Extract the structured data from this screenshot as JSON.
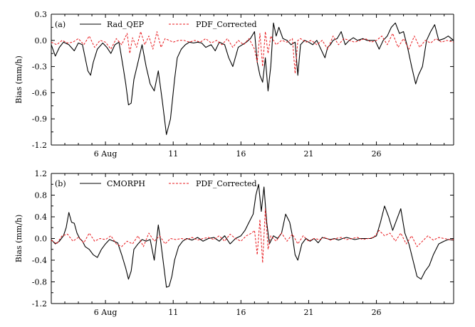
{
  "colors": {
    "series_1": "#000000",
    "series_2": "#e8191d",
    "axes": "#000000"
  },
  "chart_data": [
    {
      "type": "line",
      "panel_label": "(a)",
      "ylabel": "Bias (mm/h)",
      "xlabel": "",
      "xlim": [
        2,
        31.7
      ],
      "ylim": [
        -1.2,
        0.3
      ],
      "yticks": [
        0.3,
        0.0,
        -0.3,
        -0.6,
        -0.9,
        -1.2
      ],
      "ytick_labels": [
        "0.3",
        "0.0",
        "-0.3",
        "-0.6",
        "-0.9",
        "-1.2"
      ],
      "xticks": [
        6,
        11,
        16,
        21,
        26
      ],
      "xtick_labels": [
        "6  Aug",
        "11",
        "16",
        "21",
        "26"
      ],
      "legend": "top-left",
      "series": [
        {
          "name": "Rad_QEP",
          "style": "solid",
          "x": [
            2.0,
            2.3,
            2.6,
            2.9,
            3.3,
            3.7,
            4.0,
            4.3,
            4.5,
            4.7,
            4.9,
            5.1,
            5.4,
            5.8,
            6.1,
            6.4,
            6.7,
            7.0,
            7.3,
            7.5,
            7.7,
            7.9,
            8.1,
            8.4,
            8.7,
            9.0,
            9.3,
            9.6,
            9.9,
            10.2,
            10.5,
            10.8,
            11.1,
            11.3,
            11.6,
            11.9,
            12.2,
            12.5,
            12.8,
            13.1,
            13.4,
            13.8,
            14.1,
            14.4,
            14.8,
            15.1,
            15.4,
            15.8,
            16.1,
            16.4,
            16.7,
            17.0,
            17.2,
            17.4,
            17.6,
            17.8,
            18.0,
            18.2,
            18.4,
            18.6,
            18.8,
            19.1,
            19.4,
            19.7,
            20.0,
            20.2,
            20.4,
            20.7,
            21.0,
            21.3,
            21.6,
            21.9,
            22.2,
            22.4,
            22.6,
            22.8,
            23.1,
            23.4,
            23.7,
            24.0,
            24.3,
            24.6,
            25.0,
            25.3,
            25.6,
            25.9,
            26.2,
            26.5,
            26.8,
            27.1,
            27.4,
            27.7,
            28.0,
            28.3,
            28.6,
            28.9,
            29.1,
            29.4,
            29.7,
            30.0,
            30.3,
            30.6,
            31.0,
            31.3,
            31.7
          ],
          "y": [
            -0.05,
            -0.18,
            -0.08,
            -0.02,
            -0.05,
            -0.12,
            -0.03,
            -0.05,
            -0.2,
            -0.35,
            -0.4,
            -0.25,
            -0.1,
            -0.03,
            -0.08,
            -0.15,
            -0.05,
            -0.02,
            -0.3,
            -0.5,
            -0.74,
            -0.72,
            -0.45,
            -0.25,
            -0.05,
            -0.3,
            -0.5,
            -0.58,
            -0.35,
            -0.7,
            -1.08,
            -0.9,
            -0.45,
            -0.2,
            -0.1,
            -0.05,
            -0.02,
            -0.03,
            -0.02,
            -0.03,
            -0.08,
            -0.05,
            -0.12,
            -0.02,
            -0.05,
            -0.2,
            -0.3,
            -0.08,
            -0.05,
            -0.02,
            0.02,
            0.1,
            -0.25,
            -0.4,
            -0.48,
            -0.2,
            -0.58,
            -0.3,
            0.2,
            0.05,
            0.15,
            0.02,
            0.0,
            -0.05,
            -0.02,
            -0.4,
            -0.05,
            0.0,
            -0.02,
            -0.05,
            0.0,
            -0.1,
            -0.2,
            -0.08,
            -0.05,
            0.0,
            0.02,
            0.1,
            -0.05,
            0.0,
            0.03,
            0.0,
            0.02,
            0.0,
            0.0,
            0.0,
            -0.1,
            0.0,
            0.05,
            0.15,
            0.2,
            0.08,
            0.1,
            -0.08,
            -0.3,
            -0.5,
            -0.4,
            -0.3,
            0.0,
            0.1,
            0.18,
            0.0,
            0.02,
            0.05,
            0.0
          ]
        },
        {
          "name": "PDF_Corrected",
          "style": "dashed",
          "x": [
            2.0,
            2.4,
            2.8,
            3.2,
            3.6,
            4.0,
            4.4,
            4.8,
            5.2,
            5.6,
            6.0,
            6.4,
            6.8,
            7.2,
            7.6,
            7.8,
            8.0,
            8.3,
            8.6,
            8.9,
            9.2,
            9.5,
            9.8,
            10.1,
            10.4,
            10.7,
            11.0,
            11.4,
            11.8,
            12.2,
            12.6,
            13.0,
            13.4,
            13.8,
            14.2,
            14.6,
            15.0,
            15.4,
            15.8,
            16.2,
            16.6,
            17.0,
            17.2,
            17.4,
            17.6,
            17.8,
            18.0,
            18.2,
            18.6,
            19.0,
            19.4,
            19.8,
            20.0,
            20.2,
            20.4,
            20.8,
            21.2,
            21.6,
            22.0,
            22.4,
            22.8,
            23.2,
            23.6,
            24.0,
            24.4,
            24.8,
            25.2,
            25.6,
            26.0,
            26.4,
            26.8,
            27.2,
            27.6,
            28.0,
            28.4,
            28.8,
            29.2,
            29.6,
            30.0,
            30.4,
            30.8,
            31.2,
            31.7
          ],
          "y": [
            -0.02,
            -0.05,
            0.0,
            -0.03,
            -0.02,
            0.02,
            -0.05,
            0.05,
            -0.08,
            0.0,
            -0.02,
            -0.1,
            0.02,
            -0.05,
            0.08,
            -0.15,
            0.03,
            -0.08,
            0.1,
            -0.05,
            0.05,
            -0.1,
            0.1,
            -0.08,
            0.02,
            0.0,
            -0.02,
            0.0,
            0.0,
            -0.02,
            0.0,
            -0.02,
            0.02,
            -0.03,
            0.0,
            -0.05,
            0.02,
            -0.08,
            0.0,
            -0.05,
            0.02,
            -0.1,
            -0.25,
            0.08,
            -0.3,
            0.1,
            -0.15,
            0.05,
            -0.05,
            0.0,
            -0.02,
            0.02,
            -0.38,
            0.0,
            0.02,
            -0.02,
            0.0,
            -0.05,
            0.0,
            -0.1,
            0.05,
            -0.05,
            0.02,
            0.0,
            -0.02,
            0.0,
            0.02,
            -0.02,
            0.0,
            0.05,
            -0.05,
            0.08,
            -0.08,
            0.02,
            -0.1,
            0.05,
            -0.08,
            0.0,
            -0.03,
            0.02,
            -0.02,
            0.0,
            -0.02
          ]
        }
      ]
    },
    {
      "type": "line",
      "panel_label": "(b)",
      "ylabel": "Bias (mm/h)",
      "xlabel": "",
      "xlim": [
        2,
        31.7
      ],
      "ylim": [
        -1.2,
        1.2
      ],
      "yticks": [
        1.2,
        0.8,
        0.4,
        0.0,
        -0.4,
        -0.8,
        -1.2
      ],
      "ytick_labels": [
        "1.2",
        "0.8",
        "0.4",
        "0.0",
        "-0.4",
        "-0.8",
        "-1.2"
      ],
      "xticks": [
        6,
        11,
        16,
        21,
        26
      ],
      "xtick_labels": [
        "6  Aug",
        "11",
        "16",
        "21",
        "26"
      ],
      "legend": "top-left",
      "series": [
        {
          "name": "CMORPH",
          "style": "solid",
          "x": [
            2.0,
            2.3,
            2.6,
            2.9,
            3.1,
            3.3,
            3.5,
            3.7,
            3.9,
            4.1,
            4.3,
            4.5,
            4.8,
            5.1,
            5.4,
            5.7,
            6.0,
            6.3,
            6.6,
            6.9,
            7.2,
            7.5,
            7.7,
            7.9,
            8.1,
            8.4,
            8.7,
            9.0,
            9.3,
            9.6,
            9.9,
            10.1,
            10.3,
            10.5,
            10.7,
            10.9,
            11.1,
            11.4,
            11.7,
            12.0,
            12.4,
            12.8,
            13.2,
            13.6,
            14.0,
            14.4,
            14.8,
            15.2,
            15.6,
            16.0,
            16.3,
            16.6,
            16.9,
            17.1,
            17.3,
            17.5,
            17.7,
            17.9,
            18.1,
            18.4,
            18.7,
            19.0,
            19.3,
            19.6,
            19.8,
            20.0,
            20.2,
            20.5,
            20.8,
            21.1,
            21.4,
            21.7,
            22.0,
            22.3,
            22.6,
            22.9,
            23.2,
            23.5,
            23.8,
            24.1,
            24.4,
            24.8,
            25.2,
            25.6,
            26.0,
            26.3,
            26.6,
            26.9,
            27.2,
            27.5,
            27.8,
            28.1,
            28.4,
            28.7,
            29.0,
            29.3,
            29.6,
            29.9,
            30.2,
            30.6,
            31.0,
            31.3,
            31.7
          ],
          "y": [
            -0.02,
            -0.1,
            -0.05,
            0.05,
            0.2,
            0.48,
            0.3,
            0.28,
            0.1,
            0.0,
            -0.05,
            -0.15,
            -0.2,
            -0.3,
            -0.35,
            -0.2,
            -0.1,
            -0.02,
            -0.05,
            -0.08,
            -0.3,
            -0.55,
            -0.75,
            -0.6,
            -0.2,
            -0.1,
            -0.02,
            -0.05,
            -0.02,
            -0.4,
            0.25,
            -0.1,
            -0.5,
            -0.9,
            -0.88,
            -0.7,
            -0.4,
            -0.15,
            -0.05,
            0.0,
            -0.03,
            0.02,
            -0.05,
            0.0,
            0.02,
            -0.05,
            0.05,
            -0.1,
            0.0,
            0.05,
            0.15,
            0.3,
            0.45,
            0.8,
            1.0,
            0.5,
            0.95,
            0.3,
            -0.1,
            0.05,
            0.0,
            0.1,
            0.45,
            0.3,
            0.05,
            -0.3,
            -0.4,
            -0.1,
            0.0,
            -0.05,
            0.0,
            -0.08,
            0.02,
            0.0,
            -0.02,
            0.0,
            -0.03,
            0.0,
            0.02,
            0.0,
            -0.02,
            0.0,
            0.0,
            0.0,
            0.05,
            0.3,
            0.6,
            0.4,
            0.15,
            0.35,
            0.55,
            0.1,
            -0.1,
            -0.4,
            -0.7,
            -0.75,
            -0.6,
            -0.5,
            -0.3,
            -0.1,
            -0.05,
            -0.02,
            -0.03
          ]
        },
        {
          "name": "PDF_Corrected",
          "style": "dashed",
          "x": [
            2.0,
            2.4,
            2.8,
            3.2,
            3.6,
            4.0,
            4.4,
            4.8,
            5.2,
            5.6,
            6.0,
            6.4,
            6.8,
            7.2,
            7.6,
            8.0,
            8.4,
            8.8,
            9.2,
            9.6,
            10.0,
            10.4,
            10.8,
            11.2,
            11.6,
            12.0,
            12.4,
            12.8,
            13.2,
            13.6,
            14.0,
            14.4,
            14.8,
            15.2,
            15.6,
            16.0,
            16.4,
            16.8,
            17.0,
            17.2,
            17.4,
            17.6,
            17.8,
            18.0,
            18.2,
            18.6,
            19.0,
            19.4,
            19.8,
            20.2,
            20.6,
            21.0,
            21.4,
            21.8,
            22.2,
            22.6,
            23.0,
            23.4,
            23.8,
            24.2,
            24.6,
            25.0,
            25.4,
            25.8,
            26.2,
            26.6,
            27.0,
            27.4,
            27.8,
            28.2,
            28.6,
            29.0,
            29.4,
            29.8,
            30.2,
            30.6,
            31.0,
            31.4,
            31.7
          ],
          "y": [
            -0.03,
            -0.1,
            0.05,
            0.08,
            -0.05,
            0.02,
            -0.08,
            0.1,
            -0.05,
            0.0,
            -0.02,
            0.05,
            -0.1,
            -0.15,
            -0.05,
            -0.1,
            0.05,
            -0.15,
            0.1,
            -0.05,
            0.05,
            -0.1,
            0.0,
            -0.02,
            0.0,
            -0.02,
            0.02,
            -0.03,
            0.0,
            0.02,
            -0.02,
            0.05,
            -0.05,
            0.08,
            0.0,
            -0.05,
            0.05,
            0.1,
            0.15,
            -0.3,
            0.35,
            -0.45,
            0.55,
            -0.2,
            0.05,
            -0.05,
            0.1,
            -0.05,
            0.08,
            -0.1,
            0.05,
            -0.05,
            0.0,
            -0.02,
            0.02,
            -0.03,
            0.0,
            0.02,
            -0.02,
            0.0,
            0.02,
            -0.02,
            0.0,
            0.02,
            0.15,
            0.05,
            0.1,
            -0.05,
            0.1,
            -0.1,
            0.05,
            -0.15,
            -0.05,
            0.05,
            -0.03,
            0.02,
            0.0,
            -0.02,
            -0.02
          ]
        }
      ]
    }
  ]
}
